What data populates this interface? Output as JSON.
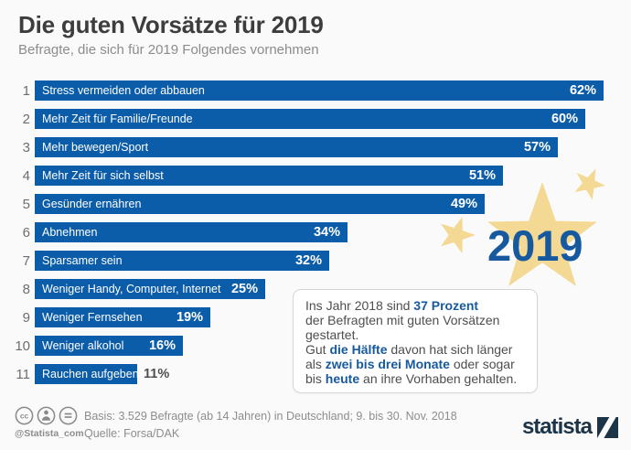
{
  "header": {
    "title": "Die guten Vorsätze für 2019",
    "subtitle": "Befragte, die sich für 2019 Folgendes vornehmen"
  },
  "chart_data": {
    "type": "bar",
    "orientation": "horizontal",
    "title": "Die guten Vorsätze für 2019",
    "subtitle": "Befragte, die sich für 2019 Folgendes vornehmen",
    "unit": "%",
    "xlim": [
      0,
      66
    ],
    "grid": false,
    "legend": false,
    "ranks": [
      1,
      2,
      3,
      4,
      5,
      6,
      7,
      8,
      9,
      10,
      11
    ],
    "categories": [
      "Stress vermeiden oder abbauen",
      "Mehr Zeit für Familie/Freunde",
      "Mehr bewegen/Sport",
      "Mehr Zeit für sich selbst",
      "Gesünder ernähren",
      "Abnehmen",
      "Sparsamer sein",
      "Weniger Handy, Computer, Internet",
      "Weniger Fernsehen",
      "Weniger alkohol",
      "Rauchen aufgeben"
    ],
    "values": [
      62,
      60,
      57,
      51,
      49,
      34,
      32,
      25,
      19,
      16,
      11
    ],
    "value_labels": [
      "62%",
      "60%",
      "57%",
      "51%",
      "49%",
      "34%",
      "32%",
      "25%",
      "19%",
      "16%",
      "11%"
    ],
    "value_label_outside": [
      false,
      false,
      false,
      false,
      false,
      false,
      false,
      false,
      false,
      false,
      true
    ]
  },
  "decoration": {
    "year": "2019"
  },
  "infobox": {
    "lines": [
      [
        {
          "t": "Ins Jahr 2018 sind "
        },
        {
          "t": "37 Prozent",
          "hl": true
        }
      ],
      [
        {
          "t": "der Befragten mit guten Vorsätzen"
        }
      ],
      [
        {
          "t": "gestartet."
        }
      ],
      [
        {
          "t": "Gut "
        },
        {
          "t": "die Hälfte",
          "hl": true
        },
        {
          "t": " davon hat sich länger"
        }
      ],
      [
        {
          "t": "als "
        },
        {
          "t": "zwei bis drei Monate",
          "hl": true
        },
        {
          "t": " oder sogar"
        }
      ],
      [
        {
          "t": "bis "
        },
        {
          "t": "heute",
          "hl": true
        },
        {
          "t": " an ihre Vorhaben gehalten."
        }
      ]
    ]
  },
  "footer": {
    "attribution": "@Statista_com",
    "basis": "Basis: 3.529 Befragte (ab 14 Jahren) in Deutschland; 9. bis 30. Nov. 2018",
    "source": "Quelle: Forsa/DAK",
    "brand": "statista",
    "license_icons": [
      "cc-icon",
      "cc-by-icon",
      "cc-nd-icon"
    ]
  },
  "colors": {
    "background": "#fafafa",
    "bar": "#0c5da9",
    "accent": "#17599f",
    "star": "#f3d994",
    "title": "#3d3d3d",
    "muted": "#8c8c8c",
    "footer_text": "#8d8d8d",
    "logo_navy": "#1c3448"
  }
}
